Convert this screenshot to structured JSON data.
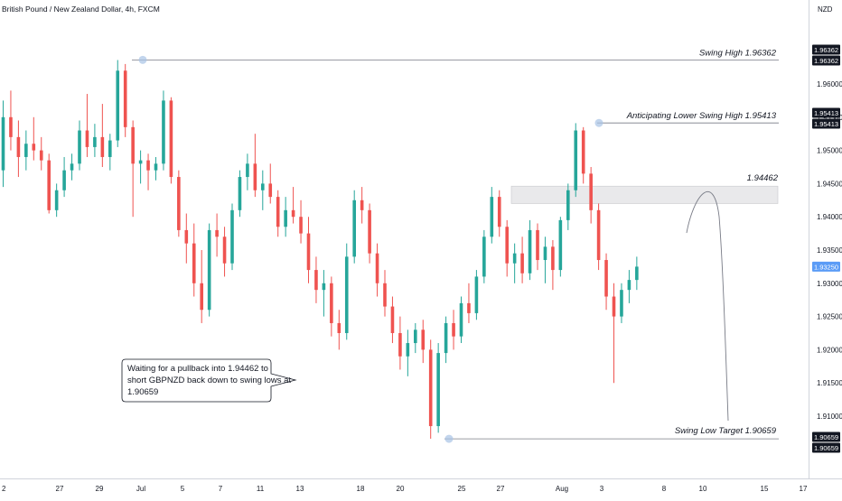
{
  "header": {
    "symbol_title": "British Pound / New Zealand Dollar, 4h, FXCM",
    "currency": "NZD"
  },
  "price_axis": {
    "ticks": [
      "1.96000",
      "1.95500",
      "1.95000",
      "1.94500",
      "1.94000",
      "1.93500",
      "1.93000",
      "1.92500",
      "1.92000",
      "1.91500",
      "1.91000"
    ],
    "current_price_tag": "1.93250"
  },
  "time_axis": {
    "ticks": [
      "2",
      "27",
      "29",
      "Jul",
      "5",
      "7",
      "11",
      "13",
      "18",
      "20",
      "25",
      "27",
      "Aug",
      "3",
      "8",
      "10",
      "15",
      "17"
    ]
  },
  "levels": {
    "swing_high": {
      "label": "Swing High 1.96362",
      "tag_a": "1.96362",
      "tag_b": "1.96362"
    },
    "lower_high": {
      "label": "Anticipating Lower Swing High 1.95413",
      "tag_a": "1.95413",
      "tag_b": "1.95413"
    },
    "zone": {
      "label": "1.94462"
    },
    "swing_low": {
      "label": "Swing Low Target 1.90659",
      "tag_a": "1.90659",
      "tag_b": "1.90659"
    }
  },
  "callout": {
    "lines": [
      "Waiting for a pullback into 1.94462 to",
      "short GBPNZD back down to swing lows at",
      "1.90659"
    ]
  },
  "colors": {
    "up_candle": "#26a69a",
    "down_candle": "#ef5350",
    "level_line": "#787b86",
    "zone_fill": "#e9e9eb",
    "marker": "#a8c3e6",
    "current_price_bg": "#5b9cf6"
  },
  "chart_data": {
    "type": "candlestick",
    "title": "British Pound / New Zealand Dollar, 4h, FXCM",
    "y_unit": "NZD",
    "ylim": [
      1.904,
      1.97
    ],
    "x_ticks": [
      "2",
      "27",
      "29",
      "Jul",
      "5",
      "7",
      "11",
      "13",
      "18",
      "20",
      "25",
      "27",
      "Aug",
      "3",
      "8",
      "10",
      "15",
      "17"
    ],
    "y_ticks": [
      1.96,
      1.955,
      1.95,
      1.945,
      1.94,
      1.935,
      1.93,
      1.925,
      1.92,
      1.915,
      1.91
    ],
    "series": [
      {
        "values": [
          {
            "o": 1.947,
            "h": 1.9575,
            "l": 1.9445,
            "c": 1.955
          },
          {
            "o": 1.955,
            "h": 1.959,
            "l": 1.95,
            "c": 1.952
          },
          {
            "o": 1.952,
            "h": 1.9545,
            "l": 1.946,
            "c": 1.949
          },
          {
            "o": 1.949,
            "h": 1.953,
            "l": 1.947,
            "c": 1.951
          },
          {
            "o": 1.951,
            "h": 1.955,
            "l": 1.9485,
            "c": 1.95
          },
          {
            "o": 1.95,
            "h": 1.952,
            "l": 1.947,
            "c": 1.9485
          },
          {
            "o": 1.9485,
            "h": 1.9495,
            "l": 1.9405,
            "c": 1.941
          },
          {
            "o": 1.941,
            "h": 1.945,
            "l": 1.94,
            "c": 1.944
          },
          {
            "o": 1.944,
            "h": 1.949,
            "l": 1.943,
            "c": 1.947
          },
          {
            "o": 1.947,
            "h": 1.9495,
            "l": 1.9455,
            "c": 1.948
          },
          {
            "o": 1.948,
            "h": 1.9545,
            "l": 1.947,
            "c": 1.953
          },
          {
            "o": 1.953,
            "h": 1.9585,
            "l": 1.949,
            "c": 1.9505
          },
          {
            "o": 1.9505,
            "h": 1.954,
            "l": 1.949,
            "c": 1.952
          },
          {
            "o": 1.952,
            "h": 1.957,
            "l": 1.9475,
            "c": 1.949
          },
          {
            "o": 1.949,
            "h": 1.9525,
            "l": 1.947,
            "c": 1.9515
          },
          {
            "o": 1.9515,
            "h": 1.9636,
            "l": 1.9505,
            "c": 1.962
          },
          {
            "o": 1.962,
            "h": 1.963,
            "l": 1.952,
            "c": 1.9535
          },
          {
            "o": 1.9535,
            "h": 1.9545,
            "l": 1.94,
            "c": 1.948
          },
          {
            "o": 1.948,
            "h": 1.95,
            "l": 1.945,
            "c": 1.9485
          },
          {
            "o": 1.9485,
            "h": 1.9495,
            "l": 1.944,
            "c": 1.947
          },
          {
            "o": 1.947,
            "h": 1.949,
            "l": 1.9455,
            "c": 1.948
          },
          {
            "o": 1.948,
            "h": 1.959,
            "l": 1.947,
            "c": 1.9575
          },
          {
            "o": 1.9575,
            "h": 1.958,
            "l": 1.945,
            "c": 1.946
          },
          {
            "o": 1.946,
            "h": 1.947,
            "l": 1.937,
            "c": 1.938
          },
          {
            "o": 1.938,
            "h": 1.9405,
            "l": 1.933,
            "c": 1.936
          },
          {
            "o": 1.936,
            "h": 1.939,
            "l": 1.928,
            "c": 1.93
          },
          {
            "o": 1.93,
            "h": 1.935,
            "l": 1.924,
            "c": 1.926
          },
          {
            "o": 1.926,
            "h": 1.939,
            "l": 1.925,
            "c": 1.938
          },
          {
            "o": 1.938,
            "h": 1.9405,
            "l": 1.934,
            "c": 1.937
          },
          {
            "o": 1.937,
            "h": 1.9385,
            "l": 1.931,
            "c": 1.933
          },
          {
            "o": 1.933,
            "h": 1.942,
            "l": 1.932,
            "c": 1.941
          },
          {
            "o": 1.941,
            "h": 1.947,
            "l": 1.94,
            "c": 1.946
          },
          {
            "o": 1.946,
            "h": 1.9495,
            "l": 1.944,
            "c": 1.948
          },
          {
            "o": 1.948,
            "h": 1.9525,
            "l": 1.943,
            "c": 1.944
          },
          {
            "o": 1.944,
            "h": 1.947,
            "l": 1.941,
            "c": 1.945
          },
          {
            "o": 1.945,
            "h": 1.948,
            "l": 1.942,
            "c": 1.943
          },
          {
            "o": 1.943,
            "h": 1.944,
            "l": 1.937,
            "c": 1.9385
          },
          {
            "o": 1.9385,
            "h": 1.943,
            "l": 1.937,
            "c": 1.941
          },
          {
            "o": 1.941,
            "h": 1.9445,
            "l": 1.939,
            "c": 1.94
          },
          {
            "o": 1.94,
            "h": 1.9425,
            "l": 1.936,
            "c": 1.9375
          },
          {
            "o": 1.9375,
            "h": 1.94,
            "l": 1.93,
            "c": 1.932
          },
          {
            "o": 1.932,
            "h": 1.934,
            "l": 1.927,
            "c": 1.929
          },
          {
            "o": 1.929,
            "h": 1.932,
            "l": 1.925,
            "c": 1.93
          },
          {
            "o": 1.93,
            "h": 1.931,
            "l": 1.922,
            "c": 1.924
          },
          {
            "o": 1.924,
            "h": 1.926,
            "l": 1.92,
            "c": 1.9225
          },
          {
            "o": 1.9225,
            "h": 1.936,
            "l": 1.9215,
            "c": 1.934
          },
          {
            "o": 1.934,
            "h": 1.944,
            "l": 1.933,
            "c": 1.9425
          },
          {
            "o": 1.9425,
            "h": 1.9445,
            "l": 1.939,
            "c": 1.941
          },
          {
            "o": 1.941,
            "h": 1.942,
            "l": 1.933,
            "c": 1.9345
          },
          {
            "o": 1.9345,
            "h": 1.936,
            "l": 1.928,
            "c": 1.93
          },
          {
            "o": 1.93,
            "h": 1.932,
            "l": 1.925,
            "c": 1.9265
          },
          {
            "o": 1.9265,
            "h": 1.928,
            "l": 1.921,
            "c": 1.9225
          },
          {
            "o": 1.9225,
            "h": 1.925,
            "l": 1.917,
            "c": 1.919
          },
          {
            "o": 1.919,
            "h": 1.923,
            "l": 1.916,
            "c": 1.921
          },
          {
            "o": 1.921,
            "h": 1.924,
            "l": 1.9195,
            "c": 1.923
          },
          {
            "o": 1.923,
            "h": 1.9245,
            "l": 1.918,
            "c": 1.92
          },
          {
            "o": 1.92,
            "h": 1.9215,
            "l": 1.9066,
            "c": 1.9085
          },
          {
            "o": 1.9085,
            "h": 1.921,
            "l": 1.9075,
            "c": 1.9195
          },
          {
            "o": 1.9195,
            "h": 1.925,
            "l": 1.918,
            "c": 1.924
          },
          {
            "o": 1.924,
            "h": 1.926,
            "l": 1.92,
            "c": 1.922
          },
          {
            "o": 1.922,
            "h": 1.928,
            "l": 1.921,
            "c": 1.927
          },
          {
            "o": 1.927,
            "h": 1.93,
            "l": 1.924,
            "c": 1.9255
          },
          {
            "o": 1.9255,
            "h": 1.932,
            "l": 1.9245,
            "c": 1.931
          },
          {
            "o": 1.931,
            "h": 1.938,
            "l": 1.93,
            "c": 1.937
          },
          {
            "o": 1.937,
            "h": 1.9445,
            "l": 1.936,
            "c": 1.943
          },
          {
            "o": 1.943,
            "h": 1.944,
            "l": 1.937,
            "c": 1.9385
          },
          {
            "o": 1.9385,
            "h": 1.9395,
            "l": 1.931,
            "c": 1.933
          },
          {
            "o": 1.933,
            "h": 1.936,
            "l": 1.93,
            "c": 1.9345
          },
          {
            "o": 1.9345,
            "h": 1.937,
            "l": 1.93,
            "c": 1.9315
          },
          {
            "o": 1.9315,
            "h": 1.9395,
            "l": 1.9305,
            "c": 1.938
          },
          {
            "o": 1.938,
            "h": 1.939,
            "l": 1.932,
            "c": 1.9335
          },
          {
            "o": 1.9335,
            "h": 1.937,
            "l": 1.93,
            "c": 1.9355
          },
          {
            "o": 1.9355,
            "h": 1.9365,
            "l": 1.929,
            "c": 1.932
          },
          {
            "o": 1.932,
            "h": 1.94,
            "l": 1.931,
            "c": 1.9395
          },
          {
            "o": 1.9395,
            "h": 1.945,
            "l": 1.938,
            "c": 1.944
          },
          {
            "o": 1.944,
            "h": 1.9541,
            "l": 1.943,
            "c": 1.953
          },
          {
            "o": 1.953,
            "h": 1.9535,
            "l": 1.945,
            "c": 1.9465
          },
          {
            "o": 1.9465,
            "h": 1.9475,
            "l": 1.939,
            "c": 1.941
          },
          {
            "o": 1.941,
            "h": 1.942,
            "l": 1.932,
            "c": 1.9335
          },
          {
            "o": 1.9335,
            "h": 1.9345,
            "l": 1.926,
            "c": 1.928
          },
          {
            "o": 1.928,
            "h": 1.93,
            "l": 1.915,
            "c": 1.925
          },
          {
            "o": 1.925,
            "h": 1.93,
            "l": 1.924,
            "c": 1.929
          },
          {
            "o": 1.929,
            "h": 1.932,
            "l": 1.927,
            "c": 1.9305
          },
          {
            "o": 1.9305,
            "h": 1.934,
            "l": 1.929,
            "c": 1.9325
          }
        ]
      }
    ],
    "annotations": [
      {
        "label": "Swing High 1.96362",
        "value": 1.96362
      },
      {
        "label": "Anticipating Lower Swing High 1.95413",
        "value": 1.95413
      },
      {
        "label": "1.94462",
        "zone": [
          1.942,
          1.94462
        ]
      },
      {
        "label": "Swing Low Target 1.90659",
        "value": 1.90659
      }
    ]
  }
}
